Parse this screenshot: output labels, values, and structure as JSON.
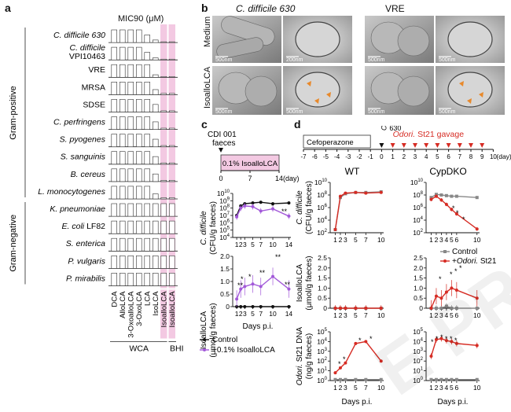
{
  "panel_a": {
    "label": "a",
    "title": "MIC90 (μM)",
    "gram_positive": "Gram-positive",
    "gram_negative": "Gram-negative",
    "organisms": [
      {
        "name": "C. difficile 630",
        "sub": ""
      },
      {
        "name": "C. difficile",
        "sub": "VPI10463"
      },
      {
        "name": "VRE",
        "sub": ""
      },
      {
        "name": "MRSA",
        "sub": ""
      },
      {
        "name": "SDSE",
        "sub": ""
      },
      {
        "name": "C. perfringens",
        "sub": ""
      },
      {
        "name": "S. pyogenes",
        "sub": ""
      },
      {
        "name": "S. sanguinis",
        "sub": ""
      },
      {
        "name": "B. cereus",
        "sub": ""
      },
      {
        "name": "L. monocytogenes",
        "sub": ""
      },
      {
        "name": "K. pneumoniae",
        "sub": ""
      },
      {
        "name": "E. coli LF82",
        "sub": ""
      },
      {
        "name": "S. enterica",
        "sub": ""
      },
      {
        "name": "P. vulgaris",
        "sub": ""
      },
      {
        "name": "P. mirabilis",
        "sub": ""
      }
    ],
    "compounds": [
      "DCA",
      "AlloLCA",
      "3-OxoalloLCA",
      "3-OxoLCA",
      "LCA",
      "IsoLCA",
      "IsoalloLCA",
      "IsoalloLCA"
    ],
    "group_wca": "WCA",
    "group_bhi": "BHI",
    "bar_values": [
      [
        50,
        50,
        50,
        50,
        30,
        10,
        3,
        3
      ],
      [
        50,
        50,
        50,
        50,
        30,
        8,
        3,
        3
      ],
      [
        50,
        50,
        50,
        50,
        50,
        10,
        3,
        3
      ],
      [
        50,
        50,
        50,
        50,
        50,
        20,
        5,
        5
      ],
      [
        50,
        50,
        50,
        50,
        50,
        30,
        5,
        5
      ],
      [
        50,
        50,
        50,
        50,
        50,
        30,
        5,
        5
      ],
      [
        50,
        50,
        50,
        50,
        50,
        30,
        5,
        5
      ],
      [
        50,
        50,
        50,
        50,
        50,
        30,
        5,
        5
      ],
      [
        50,
        50,
        50,
        50,
        50,
        30,
        5,
        5
      ],
      [
        50,
        50,
        50,
        50,
        50,
        20,
        5,
        5
      ],
      [
        50,
        50,
        50,
        50,
        50,
        50,
        50,
        50
      ],
      [
        50,
        50,
        50,
        50,
        50,
        50,
        50,
        50
      ],
      [
        50,
        50,
        50,
        50,
        50,
        50,
        50,
        50
      ],
      [
        50,
        50,
        50,
        50,
        50,
        50,
        50,
        50
      ],
      [
        50,
        50,
        50,
        50,
        50,
        50,
        50,
        50
      ]
    ]
  },
  "panel_b": {
    "label": "b",
    "col1": "C. difficile 630",
    "col2": "VRE",
    "row1": "Medium",
    "row2": "IsoalloLCA",
    "scale_bars": [
      "500nm",
      "200nm",
      "500nm",
      "500nm",
      "500nm",
      "500nm",
      "500nm",
      "500nm"
    ]
  },
  "panel_c": {
    "label": "c",
    "inoculum_line1": "CDI 001",
    "inoculum_line2": "faeces",
    "treatment": "0.1% IsoalloLCA",
    "timeline_ticks": [
      "0",
      "7",
      "14"
    ],
    "timeline_unit": "(day)",
    "plot1_ylabel_line1": "C. difficile",
    "plot1_ylabel_line2": "(CFU/g faeces)",
    "plot1_yticks": [
      "10^4",
      "10^5",
      "10^6",
      "10^7",
      "10^8",
      "10^9",
      "10^10"
    ],
    "plot2_ylabel_line1": "IsoalloLCA",
    "plot2_ylabel_line2": "(μmol/g faeces)",
    "plot2_yticks": [
      "0",
      "0.5",
      "1.0",
      "1.5",
      "2.0"
    ],
    "xticks": [
      "1",
      "2",
      "3",
      "5",
      "7",
      "10",
      "14"
    ],
    "xlabel": "Days p.i.",
    "legend_control": "Control",
    "legend_treat": "+0.1% IsoalloLCA",
    "sig": [
      "*",
      "**",
      "**",
      "*",
      "*",
      "**",
      "**",
      "**"
    ]
  },
  "panel_d": {
    "label": "d",
    "cefoperazone": "Cefoperazone",
    "cdiff_line1": "C.diff",
    "cdiff_line2": "630",
    "gavage": "Odori. St21 gavage",
    "timeline_ticks": [
      "-7",
      "-6",
      "-5",
      "-4",
      "-3",
      "-2",
      "-1",
      "0",
      "1",
      "2",
      "3",
      "4",
      "5",
      "6",
      "7",
      "8",
      "9",
      "10"
    ],
    "timeline_unit": "(day)",
    "wt": "WT",
    "cypdko": "CypDKO",
    "row1_ylabel_line1": "C. difficile",
    "row1_ylabel_line2": "(CFU/g faeces)",
    "row1_yticks": [
      "10^2",
      "10^4",
      "10^6",
      "10^8",
      "10^10"
    ],
    "row2_ylabel_line1": "IsoalloLCA",
    "row2_ylabel_line2": "(μmol/g faeces)",
    "row2_yticks": [
      "0",
      "0.5",
      "1.0",
      "1.5",
      "2.0",
      "2.5"
    ],
    "row3_ylabel_line1": "Odori. St21 DNA",
    "row3_ylabel_line2": "(ng/g faeces)",
    "row3_yticks": [
      "10^0",
      "10^1",
      "10^2",
      "10^3",
      "10^4",
      "10^5"
    ],
    "xticks": [
      "1",
      "2",
      "3",
      "4",
      "5",
      "6",
      "10"
    ],
    "xticks_wt": [
      "1",
      "2",
      "3",
      "5",
      "7",
      "10"
    ],
    "xlabel": "Days p.i.",
    "legend_control": "Control",
    "legend_treat": "+Odori. St21"
  },
  "watermark": "E PR",
  "colors": {
    "purple": "#a259d9",
    "red": "#d62c24",
    "gray": "#888888",
    "black": "#111111",
    "pink": "#f3c9e2",
    "bar": "#d3d3d3"
  },
  "chart_data": [
    {
      "type": "bar",
      "title": "MIC90 (μM)",
      "categories": [
        "DCA",
        "AlloLCA",
        "3-OxoalloLCA",
        "3-OxoLCA",
        "LCA",
        "IsoLCA",
        "IsoalloLCA",
        "IsoalloLCA"
      ],
      "series": [
        {
          "name": "C. difficile 630",
          "values": [
            50,
            50,
            50,
            50,
            30,
            10,
            3,
            3
          ]
        },
        {
          "name": "C. difficile VPI10463",
          "values": [
            50,
            50,
            50,
            50,
            30,
            8,
            3,
            3
          ]
        },
        {
          "name": "VRE",
          "values": [
            50,
            50,
            50,
            50,
            50,
            10,
            3,
            3
          ]
        },
        {
          "name": "MRSA",
          "values": [
            50,
            50,
            50,
            50,
            50,
            20,
            5,
            5
          ]
        },
        {
          "name": "SDSE",
          "values": [
            50,
            50,
            50,
            50,
            50,
            30,
            5,
            5
          ]
        },
        {
          "name": "C. perfringens",
          "values": [
            50,
            50,
            50,
            50,
            50,
            30,
            5,
            5
          ]
        },
        {
          "name": "S. pyogenes",
          "values": [
            50,
            50,
            50,
            50,
            50,
            30,
            5,
            5
          ]
        },
        {
          "name": "S. sanguinis",
          "values": [
            50,
            50,
            50,
            50,
            50,
            30,
            5,
            5
          ]
        },
        {
          "name": "B. cereus",
          "values": [
            50,
            50,
            50,
            50,
            50,
            30,
            5,
            5
          ]
        },
        {
          "name": "L. monocytogenes",
          "values": [
            50,
            50,
            50,
            50,
            50,
            20,
            5,
            5
          ]
        },
        {
          "name": "K. pneumoniae",
          "values": [
            50,
            50,
            50,
            50,
            50,
            50,
            50,
            50
          ]
        },
        {
          "name": "E. coli LF82",
          "values": [
            50,
            50,
            50,
            50,
            50,
            50,
            50,
            50
          ]
        },
        {
          "name": "S. enterica",
          "values": [
            50,
            50,
            50,
            50,
            50,
            50,
            50,
            50
          ]
        },
        {
          "name": "P. vulgaris",
          "values": [
            50,
            50,
            50,
            50,
            50,
            50,
            50,
            50
          ]
        },
        {
          "name": "P. mirabilis",
          "values": [
            50,
            50,
            50,
            50,
            50,
            50,
            50,
            50
          ]
        }
      ],
      "ylim": [
        0,
        50
      ]
    },
    {
      "type": "line",
      "ylabel": "C. difficile (CFU/g faeces)",
      "xlabel": "Days p.i.",
      "x": [
        1,
        2,
        3,
        5,
        7,
        10,
        14
      ],
      "ylog": true,
      "ylim": [
        4,
        10
      ],
      "series": [
        {
          "name": "Control",
          "values": [
            7.0,
            8.3,
            8.6,
            8.7,
            8.8,
            8.6,
            8.7
          ]
        },
        {
          "name": "+0.1% IsoalloLCA",
          "values": [
            6.8,
            8.0,
            8.3,
            8.2,
            7.6,
            7.9,
            6.9
          ]
        }
      ]
    },
    {
      "type": "line",
      "ylabel": "IsoalloLCA (μmol/g faeces)",
      "xlabel": "Days p.i.",
      "x": [
        1,
        2,
        3,
        5,
        7,
        10,
        14
      ],
      "ylim": [
        0,
        2
      ],
      "series": [
        {
          "name": "Control",
          "values": [
            0,
            0,
            0,
            0,
            0,
            0,
            0
          ]
        },
        {
          "name": "+0.1% IsoalloLCA",
          "values": [
            0.3,
            0.7,
            0.8,
            0.9,
            0.8,
            1.2,
            0.7
          ]
        }
      ]
    },
    {
      "type": "line",
      "title": "WT",
      "ylabel": "C. difficile (CFU/g faeces)",
      "x": [
        1,
        2,
        3,
        5,
        7,
        10
      ],
      "ylog": true,
      "ylim": [
        2,
        10
      ],
      "series": [
        {
          "name": "Control",
          "values": [
            2.5,
            7.6,
            8.2,
            8.4,
            8.4,
            8.5
          ]
        },
        {
          "name": "+Odori. St21",
          "values": [
            2.5,
            7.8,
            8.3,
            8.4,
            8.3,
            8.4
          ]
        }
      ]
    },
    {
      "type": "line",
      "title": "CypDKO",
      "ylabel": "C. difficile (CFU/g faeces)",
      "x": [
        1,
        2,
        3,
        4,
        5,
        6,
        10
      ],
      "ylog": true,
      "ylim": [
        2,
        10
      ],
      "series": [
        {
          "name": "Control",
          "values": [
            7.6,
            8.1,
            8.0,
            7.9,
            7.8,
            7.8,
            7.6
          ]
        },
        {
          "name": "+Odori. St21",
          "values": [
            7.3,
            7.8,
            7.2,
            6.5,
            5.7,
            5.0,
            2.6
          ]
        }
      ]
    },
    {
      "type": "line",
      "ylabel": "IsoalloLCA (μmol/g faeces)",
      "x": [
        1,
        2,
        3,
        5,
        7,
        10
      ],
      "ylim": [
        0,
        2.5
      ],
      "series": [
        {
          "name": "Control",
          "values": [
            0,
            0,
            0,
            0,
            0,
            0
          ]
        },
        {
          "name": "+Odori. St21",
          "values": [
            0,
            0,
            0,
            0,
            0,
            0
          ]
        }
      ]
    },
    {
      "type": "line",
      "ylabel": "IsoalloLCA (μmol/g faeces)",
      "x": [
        1,
        2,
        3,
        4,
        5,
        6,
        10
      ],
      "ylim": [
        0,
        2.5
      ],
      "series": [
        {
          "name": "Control",
          "values": [
            0,
            0,
            0,
            0.1,
            0,
            0,
            0
          ]
        },
        {
          "name": "+Odori. St21",
          "values": [
            0,
            0.6,
            0.5,
            0.8,
            1.0,
            0.9,
            0.5
          ]
        }
      ]
    },
    {
      "type": "line",
      "ylabel": "Odori. St21 DNA (ng/g faeces)",
      "xlabel": "Days p.i.",
      "x": [
        1,
        2,
        3,
        5,
        7,
        10
      ],
      "ylog": true,
      "ylim": [
        0,
        5
      ],
      "series": [
        {
          "name": "Control",
          "values": [
            0.1,
            0.1,
            0.1,
            0.1,
            0.1,
            0.1
          ]
        },
        {
          "name": "+Odori. St21",
          "values": [
            0.8,
            1.3,
            1.8,
            3.8,
            4.0,
            2.0
          ]
        }
      ]
    },
    {
      "type": "line",
      "ylabel": "Odori. St21 DNA (ng/g faeces)",
      "xlabel": "Days p.i.",
      "x": [
        1,
        2,
        3,
        4,
        5,
        6,
        10
      ],
      "ylog": true,
      "ylim": [
        0,
        5
      ],
      "series": [
        {
          "name": "Control",
          "values": [
            0.1,
            0.1,
            0.1,
            0.1,
            0.1,
            0.1,
            0.1
          ]
        },
        {
          "name": "+Odori. St21",
          "values": [
            2.5,
            4.2,
            4.3,
            4.1,
            4.0,
            3.8,
            3.6
          ]
        }
      ]
    }
  ]
}
